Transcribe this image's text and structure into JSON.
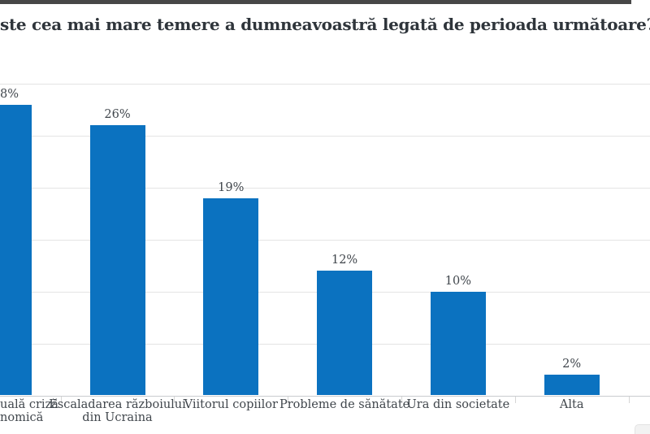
{
  "decor": {
    "top_strip_color": "#474747",
    "background": "#ffffff",
    "corner_widget_fill": "#f2f2f2",
    "corner_widget_border": "#e3e3e3"
  },
  "chart_data": {
    "type": "bar",
    "title": "ste cea mai mare temere a dumneavoastră legată de perioada următoare?",
    "title_note": "title is clipped at the left edge of the screenshot",
    "categories": [
      [
        "uală criză",
        "nomică"
      ],
      [
        "Escaladarea războiului",
        "din Ucraina"
      ],
      [
        "Viitorul copiilor"
      ],
      [
        "Probleme de sănătate"
      ],
      [
        "Ura din societate"
      ],
      [
        "Alta"
      ]
    ],
    "values": [
      28,
      26,
      19,
      12,
      10,
      2
    ],
    "value_labels": [
      "8%",
      "26%",
      "19%",
      "12%",
      "10%",
      "2%"
    ],
    "left_clipped": [
      true,
      false,
      false,
      false,
      false,
      false
    ],
    "xlabel": "",
    "ylabel": "",
    "ylim": [
      0,
      30
    ],
    "grid_step": 5,
    "grid": "on",
    "legend": "none",
    "bar_color": "#0b72c0",
    "gridline_color": "#e4e4e4",
    "axis_color": "#c9cccf",
    "tick_color": "#d6d6d6",
    "label_color": "#40464c",
    "title_color": "#2f353b"
  }
}
